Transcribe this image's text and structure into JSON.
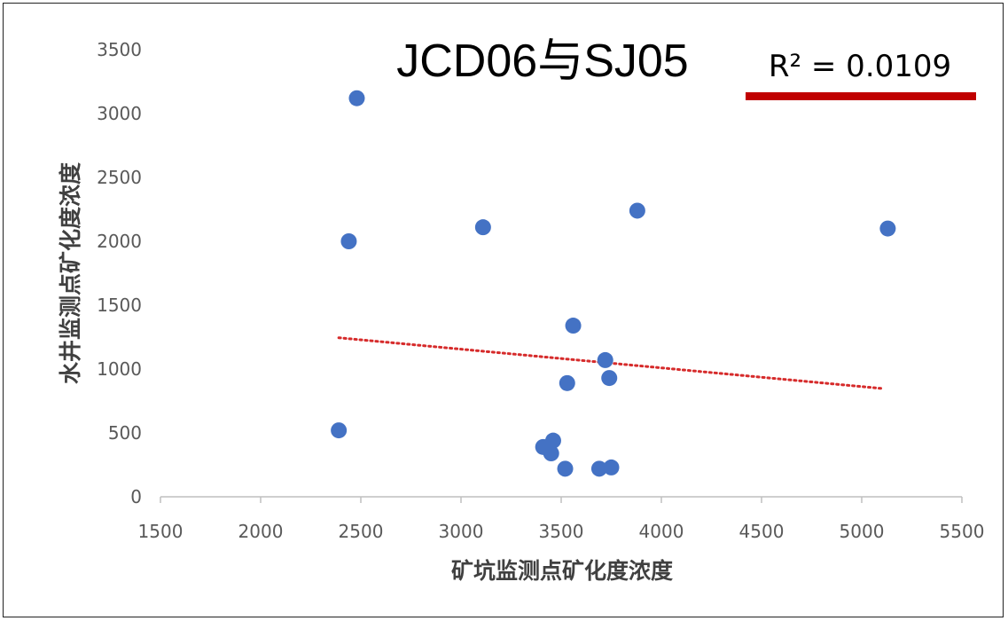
{
  "chart_data": {
    "type": "scatter",
    "title": "JCD06与SJ05",
    "xlabel": "矿坑监测点矿化度浓度",
    "ylabel": "水井监测点矿化度浓度",
    "xlim": [
      1500,
      5500
    ],
    "ylim": [
      0,
      3500
    ],
    "xticks": [
      1500,
      2000,
      2500,
      3000,
      3500,
      4000,
      4500,
      5000,
      5500
    ],
    "yticks": [
      0,
      500,
      1000,
      1500,
      2000,
      2500,
      3000,
      3500
    ],
    "grid": false,
    "points": [
      {
        "x": 2480,
        "y": 3120
      },
      {
        "x": 2440,
        "y": 2000
      },
      {
        "x": 3110,
        "y": 2110
      },
      {
        "x": 3880,
        "y": 2240
      },
      {
        "x": 5130,
        "y": 2100
      },
      {
        "x": 3560,
        "y": 1340
      },
      {
        "x": 3720,
        "y": 1070
      },
      {
        "x": 3740,
        "y": 930
      },
      {
        "x": 3530,
        "y": 890
      },
      {
        "x": 2390,
        "y": 520
      },
      {
        "x": 3460,
        "y": 440
      },
      {
        "x": 3410,
        "y": 390
      },
      {
        "x": 3450,
        "y": 340
      },
      {
        "x": 3520,
        "y": 220
      },
      {
        "x": 3690,
        "y": 220
      },
      {
        "x": 3750,
        "y": 230
      }
    ],
    "trendline": {
      "style": "dotted",
      "color": "#d62b2b",
      "from": {
        "x": 2390,
        "y": 1245
      },
      "to": {
        "x": 5100,
        "y": 848
      }
    },
    "annotation": "R² = 0.0109",
    "colors": {
      "marker": "#4472c4",
      "highlight_bar": "#c00000"
    }
  }
}
